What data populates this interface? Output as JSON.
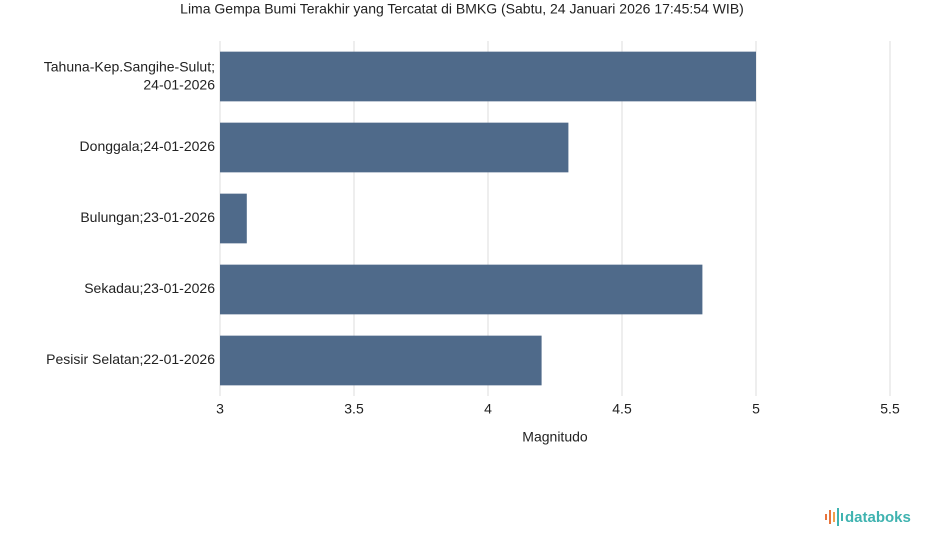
{
  "chart_data": {
    "type": "hbar",
    "title": "Lima Gempa Bumi Terakhir yang Tercatat di BMKG (Sabtu, 24 Januari 2026 17:45:54 WIB)",
    "categories": [
      "Tahuna-Kep.Sangihe-Sulut; 24-01-2026",
      "Donggala;24-01-2026",
      "Bulungan;23-01-2026",
      "Sekadau;23-01-2026",
      "Pesisir Selatan;22-01-2026"
    ],
    "values": [
      5.0,
      4.3,
      3.1,
      4.8,
      4.2
    ],
    "color": "#4f6a8a",
    "x_label": "Magnitudo",
    "xlim": [
      3,
      5.5
    ],
    "xticks": [
      3,
      3.5,
      4,
      4.5,
      5,
      5.5
    ],
    "grid": true
  },
  "brand": "databoks"
}
